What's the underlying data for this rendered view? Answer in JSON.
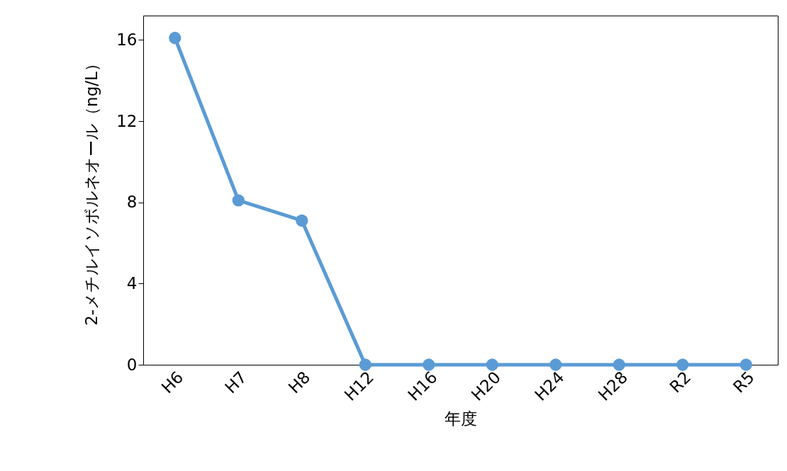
{
  "chart_data": {
    "type": "line",
    "xlabel": "年度",
    "ylabel": "2-メチルイソボルネオール（ng/L）",
    "categories": [
      "H6",
      "H7",
      "H8",
      "H12",
      "H16",
      "H20",
      "H24",
      "H28",
      "R2",
      "R5"
    ],
    "series": [
      {
        "color": "#5b9bd5",
        "values": [
          16.1,
          8.1,
          7.1,
          0,
          0,
          0,
          0,
          0,
          0,
          0
        ]
      }
    ],
    "ylim": [
      0,
      17.2
    ],
    "yticks": [
      0,
      4,
      8,
      12,
      16
    ],
    "grid": false,
    "marker": "circle",
    "line_style": "solid"
  }
}
